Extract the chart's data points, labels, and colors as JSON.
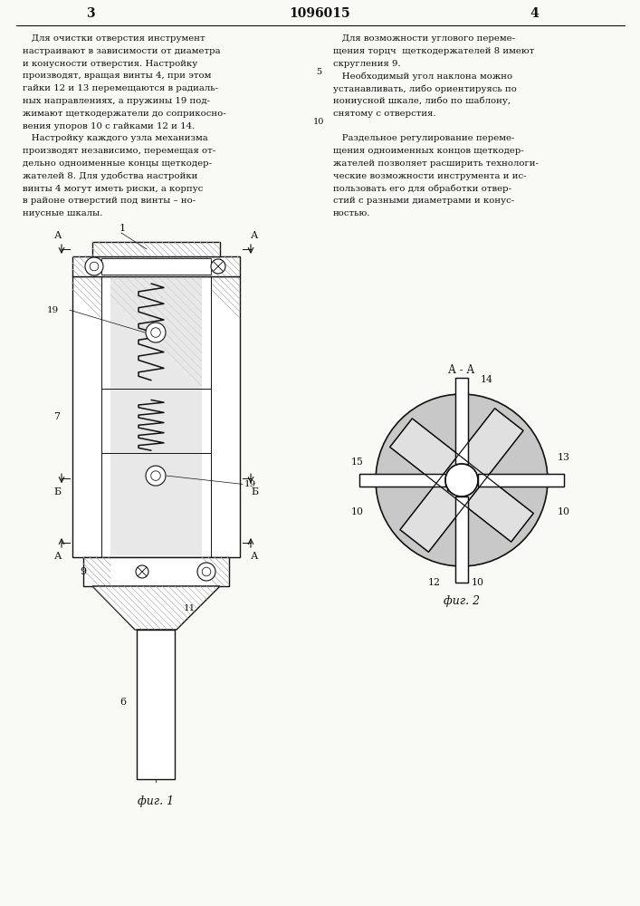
{
  "page_color": "#f9f9f6",
  "lc": "#111111",
  "header_left_num": "3",
  "header_center": "1096015",
  "header_right_num": "4",
  "header_line_numbers": [
    "5",
    "10"
  ],
  "left_col": [
    "   Для очистки отверстия инструмент",
    "настраивают в зависимости от диаметра",
    "и конусности отверстия. Настройку",
    "производят, вращая винты 4, при этом",
    "гайки 12 и 13 перемещаются в радиаль-",
    "ных направлениях, а пружины 19 под-",
    "жимают щеткодержатели до соприкосно-",
    "вения упоров 10 с гайками 12 и 14.",
    "   Настройку каждого узла механизма",
    "производят независимо, перемещая от-",
    "дельно одноименные концы щеткодер-",
    "жателей 8. Для удобства настройки",
    "винты 4 могут иметь риски, а корпус",
    "в районе отверстий под винты – но-",
    "ниусные шкалы."
  ],
  "right_col": [
    "   Для возможности углового переме-",
    "щения торцч  щеткодержателей 8 имеют",
    "скругления 9.",
    "   Необходимый угол наклона можно",
    "устанавливать, либо ориентируясь по",
    "нониусной шкале, либо по шаблону,",
    "снятому с отверстия.",
    "",
    "   Раздельное регулирование переме-",
    "щения одноименных концов щеткодер-",
    "жателей позволяет расширить технологи-",
    "ческие возможности инструмента и ис-",
    "пользовать его для обработки отвер-",
    "стий с разными диаметрами и конус-",
    "ностью."
  ],
  "fig1_caption": "фиг. 1",
  "fig2_caption": "фиг. 2",
  "fig2_section": "А - А"
}
